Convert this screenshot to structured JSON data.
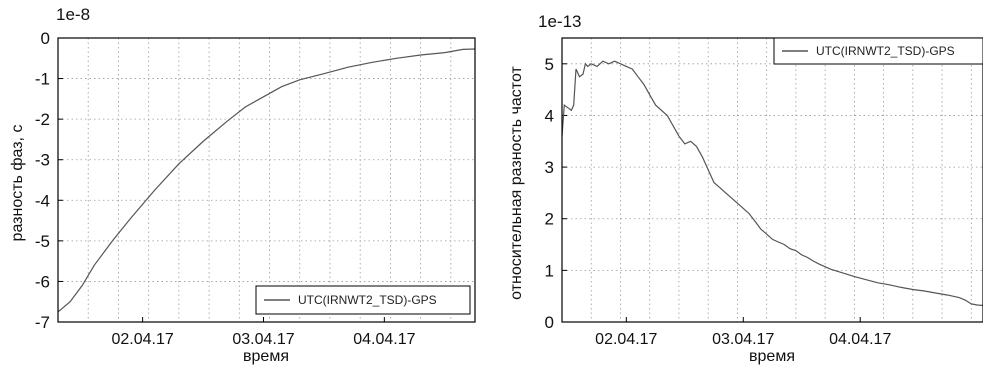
{
  "chart_data": [
    {
      "type": "line",
      "exponent_label": "1e-8",
      "ylabel": "разность фаз, с",
      "xlabel": "время",
      "ylim": [
        -7,
        0
      ],
      "yticks": [
        "0",
        "-1",
        "-2",
        "-3",
        "-4",
        "-5",
        "-6",
        "-7"
      ],
      "xlim": [
        0,
        3.45
      ],
      "xticks": [
        {
          "x": 0.7,
          "label": "02.04.17"
        },
        {
          "x": 1.7,
          "label": "03.04.17"
        },
        {
          "x": 2.7,
          "label": "04.04.17"
        }
      ],
      "grid": true,
      "legend_position": "bottom-right",
      "series": [
        {
          "name": "UTC(IRNWT2_TSD)-GPS",
          "color": "#555555",
          "x": [
            0,
            0.1,
            0.2,
            0.3,
            0.45,
            0.6,
            0.8,
            1.0,
            1.2,
            1.4,
            1.55,
            1.7,
            1.85,
            2.0,
            2.2,
            2.4,
            2.6,
            2.8,
            3.0,
            3.2,
            3.35,
            3.45
          ],
          "y": [
            -6.75,
            -6.5,
            -6.1,
            -5.6,
            -5.0,
            -4.45,
            -3.75,
            -3.1,
            -2.55,
            -2.05,
            -1.7,
            -1.45,
            -1.2,
            -1.03,
            -0.88,
            -0.72,
            -0.6,
            -0.5,
            -0.42,
            -0.36,
            -0.28,
            -0.27
          ]
        }
      ]
    },
    {
      "type": "line",
      "exponent_label": "1e-13",
      "ylabel": "относительная разность частот",
      "xlabel": "время",
      "ylim": [
        0,
        5.5
      ],
      "yticks": [
        "0",
        "1",
        "2",
        "3",
        "4",
        "5"
      ],
      "xlim": [
        0,
        3.6
      ],
      "xticks": [
        {
          "x": 0.55,
          "label": "02.04.17"
        },
        {
          "x": 1.55,
          "label": "03.04.17"
        },
        {
          "x": 2.55,
          "label": "04.04.17"
        }
      ],
      "grid": true,
      "legend_position": "top-right",
      "series": [
        {
          "name": "UTC(IRNWT2_TSD)-GPS",
          "color": "#555555",
          "x": [
            0,
            0.02,
            0.05,
            0.08,
            0.1,
            0.12,
            0.15,
            0.18,
            0.2,
            0.22,
            0.25,
            0.3,
            0.35,
            0.4,
            0.45,
            0.5,
            0.55,
            0.6,
            0.65,
            0.7,
            0.75,
            0.8,
            0.85,
            0.9,
            0.95,
            1.0,
            1.05,
            1.1,
            1.15,
            1.2,
            1.25,
            1.3,
            1.35,
            1.4,
            1.45,
            1.5,
            1.55,
            1.6,
            1.65,
            1.7,
            1.75,
            1.8,
            1.85,
            1.9,
            1.95,
            2.0,
            2.05,
            2.1,
            2.15,
            2.2,
            2.3,
            2.4,
            2.5,
            2.6,
            2.7,
            2.8,
            2.9,
            3.0,
            3.1,
            3.2,
            3.3,
            3.4,
            3.45,
            3.5,
            3.55,
            3.6
          ],
          "y": [
            3.6,
            4.2,
            4.15,
            4.1,
            4.2,
            4.9,
            4.75,
            4.8,
            5.0,
            4.95,
            5.0,
            4.95,
            5.05,
            5.0,
            5.05,
            5.0,
            4.95,
            4.9,
            4.75,
            4.6,
            4.4,
            4.2,
            4.1,
            4.0,
            3.8,
            3.6,
            3.45,
            3.5,
            3.4,
            3.2,
            2.95,
            2.7,
            2.6,
            2.5,
            2.4,
            2.3,
            2.2,
            2.1,
            1.95,
            1.8,
            1.7,
            1.6,
            1.55,
            1.5,
            1.42,
            1.38,
            1.3,
            1.25,
            1.18,
            1.12,
            1.02,
            0.95,
            0.88,
            0.82,
            0.76,
            0.72,
            0.67,
            0.63,
            0.6,
            0.56,
            0.52,
            0.47,
            0.42,
            0.35,
            0.33,
            0.32
          ]
        }
      ]
    }
  ]
}
